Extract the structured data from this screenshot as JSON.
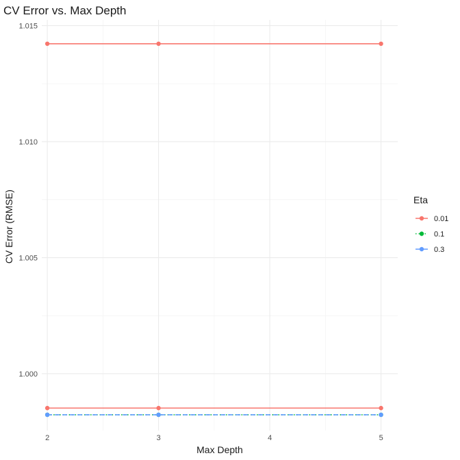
{
  "chart_data": {
    "type": "line",
    "title": "CV Error vs. Max Depth",
    "xlabel": "Max Depth",
    "ylabel": "CV Error (RMSE)",
    "x": [
      2,
      3,
      5
    ],
    "xlim": [
      1.95,
      5.15
    ],
    "ylim": [
      0.99755,
      1.01525
    ],
    "x_ticks": [
      "2",
      "3",
      "4",
      "5"
    ],
    "y_ticks": [
      "1.000",
      "1.005",
      "1.010",
      "1.015"
    ],
    "grid": true,
    "legend": {
      "title": "Eta",
      "position": "right"
    },
    "series": [
      {
        "name": "0.01",
        "color": "#f8766d",
        "dash": "solid",
        "values": [
          1.01422,
          1.01422,
          1.01422
        ]
      },
      {
        "name": "0.01",
        "color": "#f8766d",
        "dash": "solid",
        "values": [
          0.99852,
          0.99852,
          0.99852
        ],
        "in_legend": false
      },
      {
        "name": "0.1",
        "color": "#00ba38",
        "dash": "dotted",
        "values": [
          0.99823,
          0.99823,
          0.99823
        ]
      },
      {
        "name": "0.3",
        "color": "#619cff",
        "dash": "dashed",
        "values": [
          0.99823,
          0.99823,
          0.99823
        ]
      }
    ]
  }
}
